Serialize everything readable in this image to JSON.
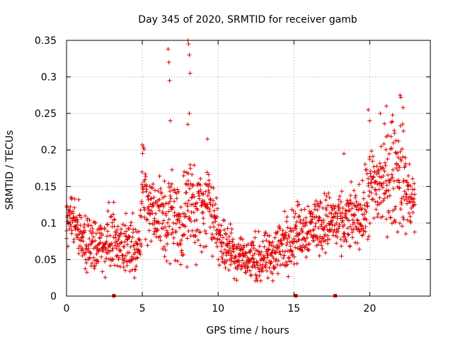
{
  "chart_data": {
    "type": "scatter",
    "title": "Day 345 of 2020, SRMTID for receiver gamb",
    "xlabel": "GPS time / hours",
    "ylabel": "SRMTID / TECUs",
    "xlim": [
      0,
      24
    ],
    "ylim": [
      0,
      0.35
    ],
    "x_ticks": [
      0,
      5,
      10,
      15,
      20
    ],
    "x_tick_labels": [
      "0",
      "5",
      "10",
      "15",
      "20"
    ],
    "y_ticks": [
      0,
      0.05,
      0.1,
      0.15,
      0.2,
      0.25,
      0.3,
      0.35
    ],
    "y_tick_labels": [
      "0",
      "0.05",
      "0.1",
      "0.15",
      "0.2",
      "0.25",
      "0.3",
      "0.35"
    ],
    "grid": true,
    "marker": "+",
    "color": "#e00000",
    "data_gap_markers_x": [
      3.1,
      15.1,
      17.7
    ],
    "series": [
      {
        "name": "SRMTID",
        "envelope_hours": [
          0,
          0.5,
          1,
          1.5,
          2,
          2.5,
          3,
          3.5,
          4,
          4.5,
          4.8,
          5.0,
          5.3,
          5.6,
          6,
          6.5,
          7,
          7.5,
          8,
          8.5,
          9,
          9.5,
          10,
          10.5,
          11,
          11.5,
          12,
          12.5,
          13,
          13.5,
          14,
          14.5,
          15,
          15.5,
          16,
          16.5,
          17,
          17.5,
          18,
          18.5,
          19,
          19.5,
          20,
          20.5,
          21,
          21.5,
          22,
          22.5,
          23
        ],
        "envelope_center": [
          0.1,
          0.105,
          0.08,
          0.07,
          0.07,
          0.075,
          0.08,
          0.07,
          0.07,
          0.075,
          0.055,
          0.16,
          0.13,
          0.12,
          0.11,
          0.105,
          0.11,
          0.1,
          0.12,
          0.12,
          0.115,
          0.13,
          0.08,
          0.07,
          0.06,
          0.055,
          0.05,
          0.05,
          0.05,
          0.055,
          0.065,
          0.075,
          0.085,
          0.09,
          0.095,
          0.1,
          0.1,
          0.105,
          0.095,
          0.1,
          0.11,
          0.11,
          0.14,
          0.15,
          0.16,
          0.17,
          0.17,
          0.14,
          0.12
        ],
        "envelope_spread": [
          0.02,
          0.03,
          0.03,
          0.03,
          0.03,
          0.03,
          0.03,
          0.03,
          0.03,
          0.03,
          0.02,
          0.05,
          0.04,
          0.04,
          0.04,
          0.05,
          0.05,
          0.04,
          0.05,
          0.05,
          0.04,
          0.04,
          0.03,
          0.03,
          0.025,
          0.025,
          0.025,
          0.025,
          0.025,
          0.025,
          0.03,
          0.03,
          0.03,
          0.03,
          0.03,
          0.03,
          0.03,
          0.03,
          0.03,
          0.03,
          0.03,
          0.03,
          0.05,
          0.05,
          0.05,
          0.06,
          0.06,
          0.04,
          0.03
        ],
        "peaks": [
          {
            "x": 6.7,
            "y": 0.338
          },
          {
            "x": 6.75,
            "y": 0.32
          },
          {
            "x": 6.8,
            "y": 0.295
          },
          {
            "x": 6.85,
            "y": 0.24
          },
          {
            "x": 8.0,
            "y": 0.35
          },
          {
            "x": 8.05,
            "y": 0.345
          },
          {
            "x": 8.1,
            "y": 0.33
          },
          {
            "x": 8.15,
            "y": 0.305
          },
          {
            "x": 8.1,
            "y": 0.25
          },
          {
            "x": 8.0,
            "y": 0.235
          },
          {
            "x": 19.9,
            "y": 0.255
          },
          {
            "x": 20.0,
            "y": 0.24
          },
          {
            "x": 20.7,
            "y": 0.25
          },
          {
            "x": 21.1,
            "y": 0.26
          },
          {
            "x": 22.0,
            "y": 0.275
          },
          {
            "x": 22.05,
            "y": 0.272
          },
          {
            "x": 22.2,
            "y": 0.258
          },
          {
            "x": 5.0,
            "y": 0.207
          },
          {
            "x": 9.3,
            "y": 0.215
          },
          {
            "x": 18.3,
            "y": 0.195
          }
        ]
      }
    ]
  }
}
